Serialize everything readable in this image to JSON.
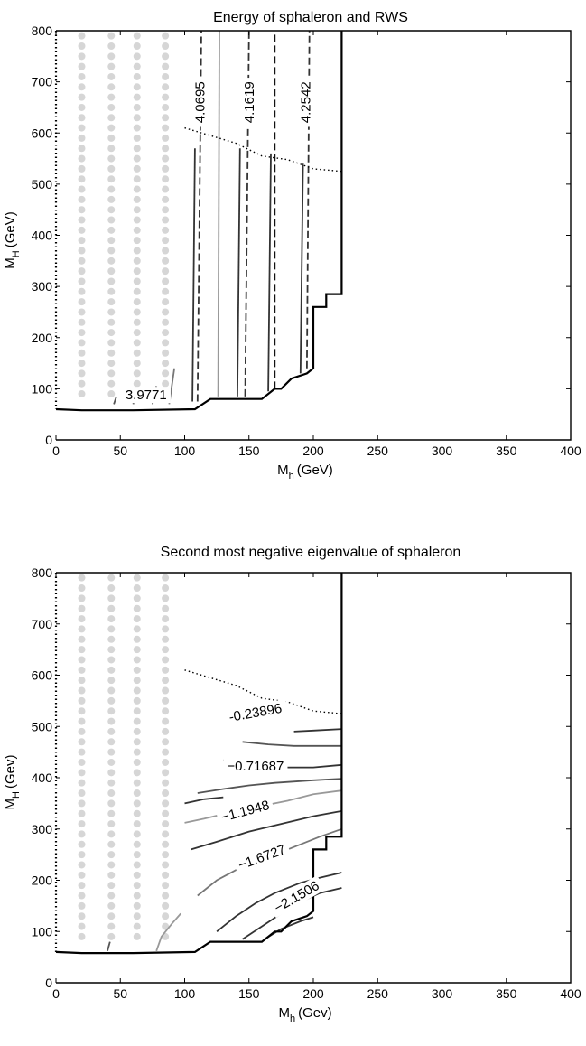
{
  "chart_data": [
    {
      "type": "contour",
      "title": "Energy of sphaleron and RWS",
      "xlabel": "M",
      "xlabel_sub": "h",
      "xlabel_unit": "(GeV)",
      "ylabel": "M",
      "ylabel_sub": "H",
      "ylabel_unit": "(GeV)",
      "xlim": [
        0,
        400
      ],
      "ylim": [
        0,
        800
      ],
      "xticks": [
        0,
        50,
        100,
        150,
        200,
        250,
        300,
        350,
        400
      ],
      "yticks": [
        0,
        100,
        200,
        300,
        400,
        500,
        600,
        700,
        800
      ],
      "grid": false,
      "boundary": [
        [
          0,
          60
        ],
        [
          20,
          58
        ],
        [
          60,
          58
        ],
        [
          108,
          60
        ],
        [
          120,
          80
        ],
        [
          160,
          80
        ],
        [
          170,
          100
        ],
        [
          175,
          100
        ],
        [
          183,
          120
        ],
        [
          195,
          130
        ],
        [
          200,
          140
        ],
        [
          200,
          260
        ],
        [
          210,
          260
        ],
        [
          210,
          285
        ],
        [
          222,
          285
        ],
        [
          222,
          800
        ]
      ],
      "dotted_curve": [
        [
          100,
          610
        ],
        [
          140,
          580
        ],
        [
          160,
          555
        ],
        [
          180,
          548
        ],
        [
          200,
          530
        ],
        [
          222,
          525
        ]
      ],
      "dot_columns_x": [
        20,
        43,
        63,
        85
      ],
      "dot_range_y": [
        90,
        790
      ],
      "contour_lines": [
        {
          "style": "solid",
          "color": "#555555",
          "points": [
            [
              45,
              70
            ],
            [
              47,
              85
            ]
          ]
        },
        {
          "style": "solid",
          "color": "#555555",
          "points": [
            [
              60,
              70
            ],
            [
              62,
              90
            ]
          ]
        },
        {
          "style": "solid",
          "color": "#555555",
          "points": [
            [
              75,
              70
            ],
            [
              78,
              105
            ]
          ]
        },
        {
          "style": "solid",
          "color": "#777777",
          "points": [
            [
              88,
              70
            ],
            [
              92,
              140
            ]
          ]
        },
        {
          "style": "solid",
          "color": "#333333",
          "points": [
            [
              106,
              75
            ],
            [
              108,
              570
            ]
          ]
        },
        {
          "style": "dashed",
          "color": "#333333",
          "points": [
            [
              110,
              75
            ],
            [
              113,
              800
            ]
          ]
        },
        {
          "style": "solid",
          "color": "#999999",
          "points": [
            [
              126,
              85
            ],
            [
              127,
              800
            ]
          ]
        },
        {
          "style": "solid",
          "color": "#333333",
          "points": [
            [
              141,
              85
            ],
            [
              143,
              570
            ]
          ]
        },
        {
          "style": "dashed",
          "color": "#333333",
          "points": [
            [
              147,
              85
            ],
            [
              150,
              800
            ]
          ]
        },
        {
          "style": "solid",
          "color": "#333333",
          "points": [
            [
              165,
              95
            ],
            [
              167,
              560
            ]
          ]
        },
        {
          "style": "dashed",
          "color": "#111111",
          "points": [
            [
              170,
              100
            ],
            [
              170,
              800
            ]
          ]
        },
        {
          "style": "solid",
          "color": "#333333",
          "points": [
            [
              190,
              130
            ],
            [
              192,
              540
            ]
          ]
        },
        {
          "style": "dashed",
          "color": "#333333",
          "points": [
            [
              195,
              140
            ],
            [
              197,
              800
            ]
          ]
        }
      ],
      "contour_labels": [
        {
          "text": "3.9771",
          "x": 70,
          "y": 88,
          "rotate": 0
        },
        {
          "text": "4.0695",
          "x": 112,
          "y": 660,
          "rotate": -90
        },
        {
          "text": "4.1619",
          "x": 150,
          "y": 660,
          "rotate": -90
        },
        {
          "text": "4.2542",
          "x": 194,
          "y": 660,
          "rotate": -90
        }
      ]
    },
    {
      "type": "contour",
      "title": "Second most negative eigenvalue of sphaleron",
      "xlabel": "M",
      "xlabel_sub": "h",
      "xlabel_unit": "(Gev)",
      "ylabel": "M",
      "ylabel_sub": "H",
      "ylabel_unit": "(Gev)",
      "xlim": [
        0,
        400
      ],
      "ylim": [
        0,
        800
      ],
      "xticks": [
        0,
        50,
        100,
        150,
        200,
        250,
        300,
        350,
        400
      ],
      "yticks": [
        0,
        100,
        200,
        300,
        400,
        500,
        600,
        700,
        800
      ],
      "grid": false,
      "boundary": [
        [
          0,
          60
        ],
        [
          20,
          58
        ],
        [
          60,
          58
        ],
        [
          108,
          60
        ],
        [
          120,
          80
        ],
        [
          160,
          80
        ],
        [
          170,
          100
        ],
        [
          175,
          100
        ],
        [
          183,
          120
        ],
        [
          195,
          130
        ],
        [
          200,
          140
        ],
        [
          200,
          260
        ],
        [
          210,
          260
        ],
        [
          210,
          285
        ],
        [
          222,
          285
        ],
        [
          222,
          800
        ]
      ],
      "dotted_curve": [
        [
          100,
          610
        ],
        [
          140,
          580
        ],
        [
          160,
          555
        ],
        [
          180,
          548
        ],
        [
          200,
          530
        ],
        [
          222,
          525
        ]
      ],
      "dot_columns_x": [
        20,
        43,
        63,
        85
      ],
      "dot_range_y": [
        90,
        790
      ],
      "contour_lines": [
        {
          "style": "solid",
          "color": "#333333",
          "points": [
            [
              185,
              490
            ],
            [
              200,
              492
            ],
            [
              222,
              495
            ]
          ]
        },
        {
          "style": "solid",
          "color": "#555555",
          "points": [
            [
              145,
              470
            ],
            [
              165,
              465
            ],
            [
              185,
              462
            ],
            [
              222,
              462
            ]
          ]
        },
        {
          "style": "solid",
          "color": "#333333",
          "points": [
            [
              130,
              435
            ],
            [
              150,
              425
            ],
            [
              175,
              420
            ],
            [
              200,
              420
            ],
            [
              222,
              425
            ]
          ]
        },
        {
          "style": "solid",
          "color": "#555555",
          "points": [
            [
              110,
              370
            ],
            [
              130,
              378
            ],
            [
              150,
              385
            ],
            [
              170,
              390
            ],
            [
              200,
              395
            ],
            [
              222,
              398
            ]
          ]
        },
        {
          "style": "solid",
          "color": "#333333",
          "points": [
            [
              100,
              350
            ],
            [
              115,
              358
            ],
            [
              130,
              362
            ]
          ]
        },
        {
          "style": "solid",
          "color": "#999999",
          "points": [
            [
              100,
              312
            ],
            [
              115,
              320
            ],
            [
              140,
              335
            ],
            [
              160,
              345
            ],
            [
              180,
              355
            ],
            [
              200,
              368
            ],
            [
              222,
              375
            ]
          ]
        },
        {
          "style": "solid",
          "color": "#333333",
          "points": [
            [
              105,
              260
            ],
            [
              125,
              275
            ],
            [
              150,
              295
            ],
            [
              175,
              310
            ],
            [
              200,
              325
            ],
            [
              222,
              335
            ]
          ]
        },
        {
          "style": "solid",
          "color": "#777777",
          "points": [
            [
              110,
              170
            ],
            [
              125,
              200
            ],
            [
              140,
              220
            ],
            [
              160,
              240
            ],
            [
              175,
              255
            ],
            [
              190,
              270
            ],
            [
              205,
              285
            ],
            [
              222,
              300
            ]
          ]
        },
        {
          "style": "solid",
          "color": "#333333",
          "points": [
            [
              125,
              100
            ],
            [
              140,
              130
            ],
            [
              155,
              155
            ],
            [
              170,
              175
            ],
            [
              190,
              195
            ],
            [
              205,
              205
            ],
            [
              222,
              215
            ]
          ]
        },
        {
          "style": "solid",
          "color": "#333333",
          "points": [
            [
              145,
              85
            ],
            [
              160,
              110
            ],
            [
              178,
              140
            ],
            [
              192,
              160
            ],
            [
              205,
              175
            ],
            [
              222,
              185
            ]
          ]
        },
        {
          "style": "solid",
          "color": "#333333",
          "points": [
            [
              162,
              85
            ],
            [
              175,
              105
            ],
            [
              190,
              120
            ],
            [
              200,
              128
            ]
          ]
        },
        {
          "style": "solid",
          "color": "#999999",
          "points": [
            [
              78,
              62
            ],
            [
              82,
              90
            ],
            [
              90,
              115
            ],
            [
              97,
              135
            ]
          ]
        },
        {
          "style": "solid",
          "color": "#555555",
          "points": [
            [
              40,
              62
            ],
            [
              42,
              80
            ]
          ]
        }
      ],
      "contour_labels": [
        {
          "text": "-0.23896",
          "x": 155,
          "y": 527,
          "rotate": -10
        },
        {
          "text": "−0.71687",
          "x": 155,
          "y": 423,
          "rotate": 0
        },
        {
          "text": "−1.1948",
          "x": 147,
          "y": 335,
          "rotate": -15
        },
        {
          "text": "−1.6727",
          "x": 160,
          "y": 245,
          "rotate": -20
        },
        {
          "text": "−2.1506",
          "x": 187,
          "y": 168,
          "rotate": -30
        }
      ]
    }
  ]
}
